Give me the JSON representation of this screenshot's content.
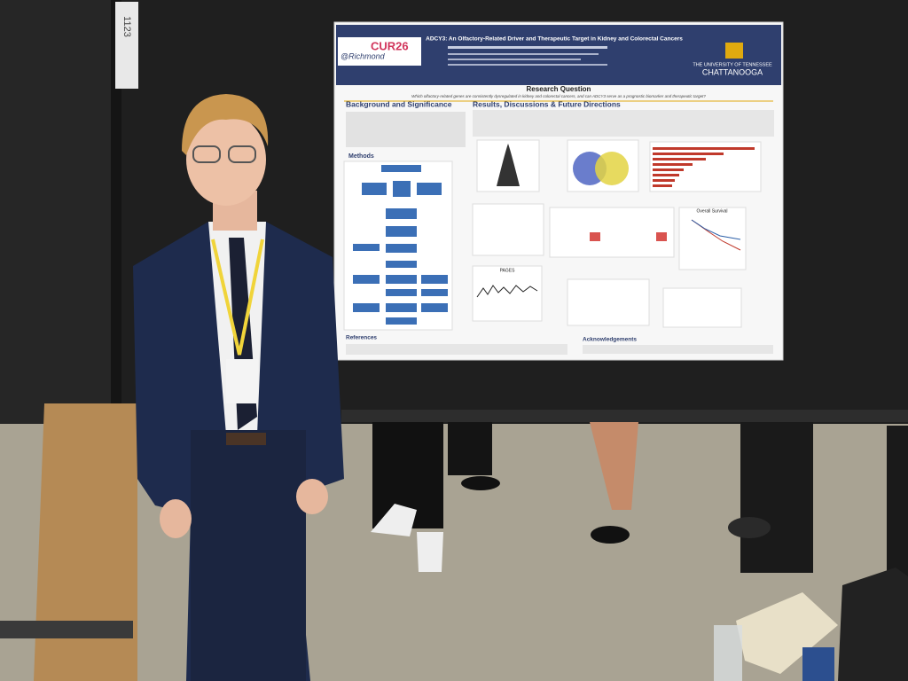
{
  "booth_tag": "1123",
  "poster": {
    "logo": "CUR26",
    "logo_sub": "@Richmond",
    "title": "ADCY3: An Olfactory-Related Driver and Therapeutic Target in Kidney and Colorectal Cancers",
    "university_line1": "THE UNIVERSITY OF TENNESSEE",
    "university_line2": "CHATTANOOGA",
    "research_question_heading": "Research Question",
    "research_question": "Which olfactory-related genes are consistently dysregulated in kidney and colorectal cancers, and can ADCY3 serve as a prognostic biomarker and therapeutic target?",
    "sections": [
      "Background and Significance",
      "Methods",
      "Results, Discussions & Future Directions",
      "References",
      "Acknowledgements"
    ],
    "figure_labels": [
      "Overall Survival",
      "PAGES"
    ]
  }
}
